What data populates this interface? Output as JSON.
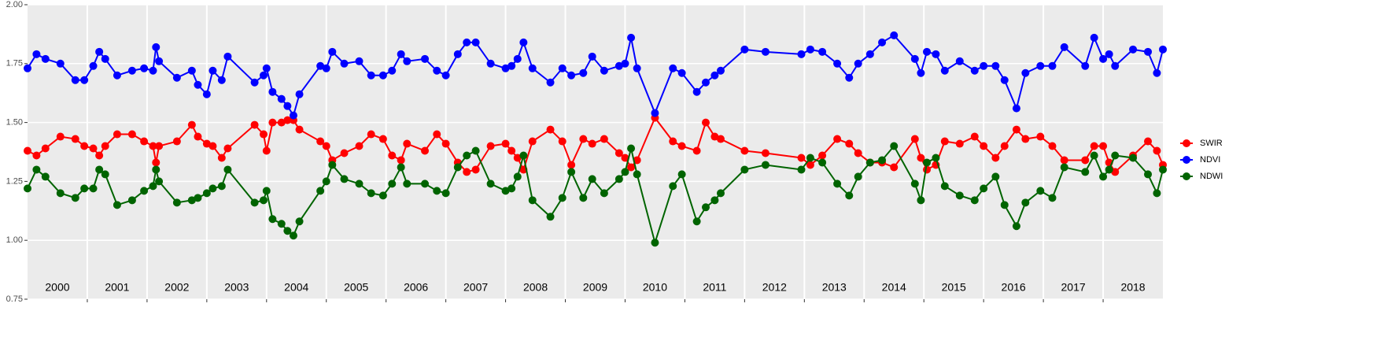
{
  "chart_data": {
    "type": "line",
    "x": [
      2000.0,
      2000.15,
      2000.3,
      2000.55,
      2000.8,
      2000.95,
      2001.1,
      2001.2,
      2001.3,
      2001.5,
      2001.75,
      2001.95,
      2002.1,
      2002.15,
      2002.2,
      2002.5,
      2002.75,
      2002.85,
      2003.0,
      2003.1,
      2003.25,
      2003.35,
      2003.8,
      2003.95,
      2004.0,
      2004.1,
      2004.25,
      2004.35,
      2004.45,
      2004.55,
      2004.9,
      2005.0,
      2005.1,
      2005.3,
      2005.55,
      2005.75,
      2005.95,
      2006.1,
      2006.25,
      2006.35,
      2006.65,
      2006.85,
      2007.0,
      2007.2,
      2007.35,
      2007.5,
      2007.75,
      2008.0,
      2008.1,
      2008.2,
      2008.3,
      2008.45,
      2008.75,
      2008.95,
      2009.1,
      2009.3,
      2009.45,
      2009.65,
      2009.9,
      2010.0,
      2010.1,
      2010.2,
      2010.5,
      2010.8,
      2010.95,
      2011.2,
      2011.35,
      2011.5,
      2011.6,
      2012.0,
      2012.35,
      2012.95,
      2013.1,
      2013.3,
      2013.55,
      2013.75,
      2013.9,
      2014.1,
      2014.3,
      2014.5,
      2014.85,
      2014.95,
      2015.05,
      2015.2,
      2015.35,
      2015.6,
      2015.85,
      2016.0,
      2016.2,
      2016.35,
      2016.55,
      2016.7,
      2016.95,
      2017.15,
      2017.35,
      2017.7,
      2017.85,
      2018.0,
      2018.1,
      2018.2,
      2018.5,
      2018.75,
      2018.9,
      2019.0
    ],
    "series": [
      {
        "name": "SWIR",
        "color": "#ff0000",
        "values": [
          1.38,
          1.36,
          1.39,
          1.44,
          1.43,
          1.4,
          1.39,
          1.36,
          1.4,
          1.45,
          1.45,
          1.42,
          1.4,
          1.33,
          1.4,
          1.42,
          1.49,
          1.44,
          1.41,
          1.4,
          1.35,
          1.39,
          1.49,
          1.45,
          1.38,
          1.5,
          1.5,
          1.51,
          1.51,
          1.47,
          1.42,
          1.4,
          1.34,
          1.37,
          1.4,
          1.45,
          1.43,
          1.36,
          1.34,
          1.41,
          1.38,
          1.45,
          1.41,
          1.33,
          1.29,
          1.3,
          1.4,
          1.41,
          1.38,
          1.35,
          1.3,
          1.42,
          1.47,
          1.42,
          1.32,
          1.43,
          1.41,
          1.43,
          1.37,
          1.35,
          1.31,
          1.34,
          1.52,
          1.42,
          1.4,
          1.38,
          1.5,
          1.44,
          1.43,
          1.38,
          1.37,
          1.35,
          1.32,
          1.36,
          1.43,
          1.41,
          1.37,
          1.33,
          1.33,
          1.31,
          1.43,
          1.35,
          1.3,
          1.32,
          1.42,
          1.41,
          1.44,
          1.4,
          1.35,
          1.4,
          1.47,
          1.43,
          1.44,
          1.4,
          1.34,
          1.34,
          1.4,
          1.4,
          1.33,
          1.29,
          1.36,
          1.42,
          1.38,
          1.32
        ]
      },
      {
        "name": "NDVI",
        "color": "#0000ff",
        "values": [
          1.73,
          1.79,
          1.77,
          1.75,
          1.68,
          1.68,
          1.74,
          1.8,
          1.77,
          1.7,
          1.72,
          1.73,
          1.72,
          1.82,
          1.76,
          1.69,
          1.72,
          1.66,
          1.62,
          1.72,
          1.68,
          1.78,
          1.67,
          1.7,
          1.73,
          1.63,
          1.6,
          1.57,
          1.53,
          1.62,
          1.74,
          1.73,
          1.8,
          1.75,
          1.76,
          1.7,
          1.7,
          1.72,
          1.79,
          1.76,
          1.77,
          1.72,
          1.7,
          1.79,
          1.84,
          1.84,
          1.75,
          1.73,
          1.74,
          1.77,
          1.84,
          1.73,
          1.67,
          1.73,
          1.7,
          1.71,
          1.78,
          1.72,
          1.74,
          1.75,
          1.86,
          1.73,
          1.54,
          1.73,
          1.71,
          1.63,
          1.67,
          1.7,
          1.72,
          1.81,
          1.8,
          1.79,
          1.81,
          1.8,
          1.75,
          1.69,
          1.75,
          1.79,
          1.84,
          1.87,
          1.77,
          1.71,
          1.8,
          1.79,
          1.72,
          1.76,
          1.72,
          1.74,
          1.74,
          1.68,
          1.56,
          1.71,
          1.74,
          1.74,
          1.82,
          1.74,
          1.86,
          1.77,
          1.79,
          1.74,
          1.81,
          1.8,
          1.71,
          1.81
        ]
      },
      {
        "name": "NDWI",
        "color": "#006400",
        "values": [
          1.22,
          1.3,
          1.27,
          1.2,
          1.18,
          1.22,
          1.22,
          1.3,
          1.28,
          1.15,
          1.17,
          1.21,
          1.23,
          1.3,
          1.25,
          1.16,
          1.17,
          1.18,
          1.2,
          1.22,
          1.23,
          1.3,
          1.16,
          1.17,
          1.21,
          1.09,
          1.07,
          1.04,
          1.02,
          1.08,
          1.21,
          1.25,
          1.32,
          1.26,
          1.24,
          1.2,
          1.19,
          1.24,
          1.31,
          1.24,
          1.24,
          1.21,
          1.2,
          1.31,
          1.36,
          1.38,
          1.24,
          1.21,
          1.22,
          1.27,
          1.36,
          1.17,
          1.1,
          1.18,
          1.29,
          1.18,
          1.26,
          1.2,
          1.26,
          1.29,
          1.39,
          1.28,
          0.99,
          1.23,
          1.28,
          1.08,
          1.14,
          1.17,
          1.2,
          1.3,
          1.32,
          1.3,
          1.35,
          1.33,
          1.24,
          1.19,
          1.27,
          1.33,
          1.34,
          1.4,
          1.24,
          1.17,
          1.33,
          1.35,
          1.23,
          1.19,
          1.17,
          1.22,
          1.27,
          1.15,
          1.06,
          1.16,
          1.21,
          1.18,
          1.31,
          1.29,
          1.36,
          1.27,
          1.3,
          1.36,
          1.35,
          1.28,
          1.2,
          1.3
        ]
      }
    ],
    "xlim": [
      2000,
      2019
    ],
    "xticks": [
      {
        "value": 2000.5,
        "label": "2000"
      },
      {
        "value": 2001.5,
        "label": "2001"
      },
      {
        "value": 2002.5,
        "label": "2002"
      },
      {
        "value": 2003.5,
        "label": "2003"
      },
      {
        "value": 2004.5,
        "label": "2004"
      },
      {
        "value": 2005.5,
        "label": "2005"
      },
      {
        "value": 2006.5,
        "label": "2006"
      },
      {
        "value": 2007.5,
        "label": "2007"
      },
      {
        "value": 2008.5,
        "label": "2008"
      },
      {
        "value": 2009.5,
        "label": "2009"
      },
      {
        "value": 2010.5,
        "label": "2010"
      },
      {
        "value": 2011.5,
        "label": "2011"
      },
      {
        "value": 2012.5,
        "label": "2012"
      },
      {
        "value": 2013.5,
        "label": "2013"
      },
      {
        "value": 2014.5,
        "label": "2014"
      },
      {
        "value": 2015.5,
        "label": "2015"
      },
      {
        "value": 2016.5,
        "label": "2016"
      },
      {
        "value": 2017.5,
        "label": "2017"
      },
      {
        "value": 2018.5,
        "label": "2018"
      }
    ],
    "xgrid": [
      2001,
      2002,
      2003,
      2004,
      2005,
      2006,
      2007,
      2008,
      2009,
      2010,
      2011,
      2012,
      2013,
      2014,
      2015,
      2016,
      2017,
      2018
    ],
    "ylim": [
      0.75,
      2.0
    ],
    "yticks": [
      {
        "value": 0.75,
        "label": "0.75"
      },
      {
        "value": 1.0,
        "label": "1.00"
      },
      {
        "value": 1.25,
        "label": "1.25"
      },
      {
        "value": 1.5,
        "label": "1.50"
      },
      {
        "value": 1.75,
        "label": "1.75"
      },
      {
        "value": 2.0,
        "label": "2.00"
      }
    ],
    "grid": true,
    "legend": "right"
  }
}
